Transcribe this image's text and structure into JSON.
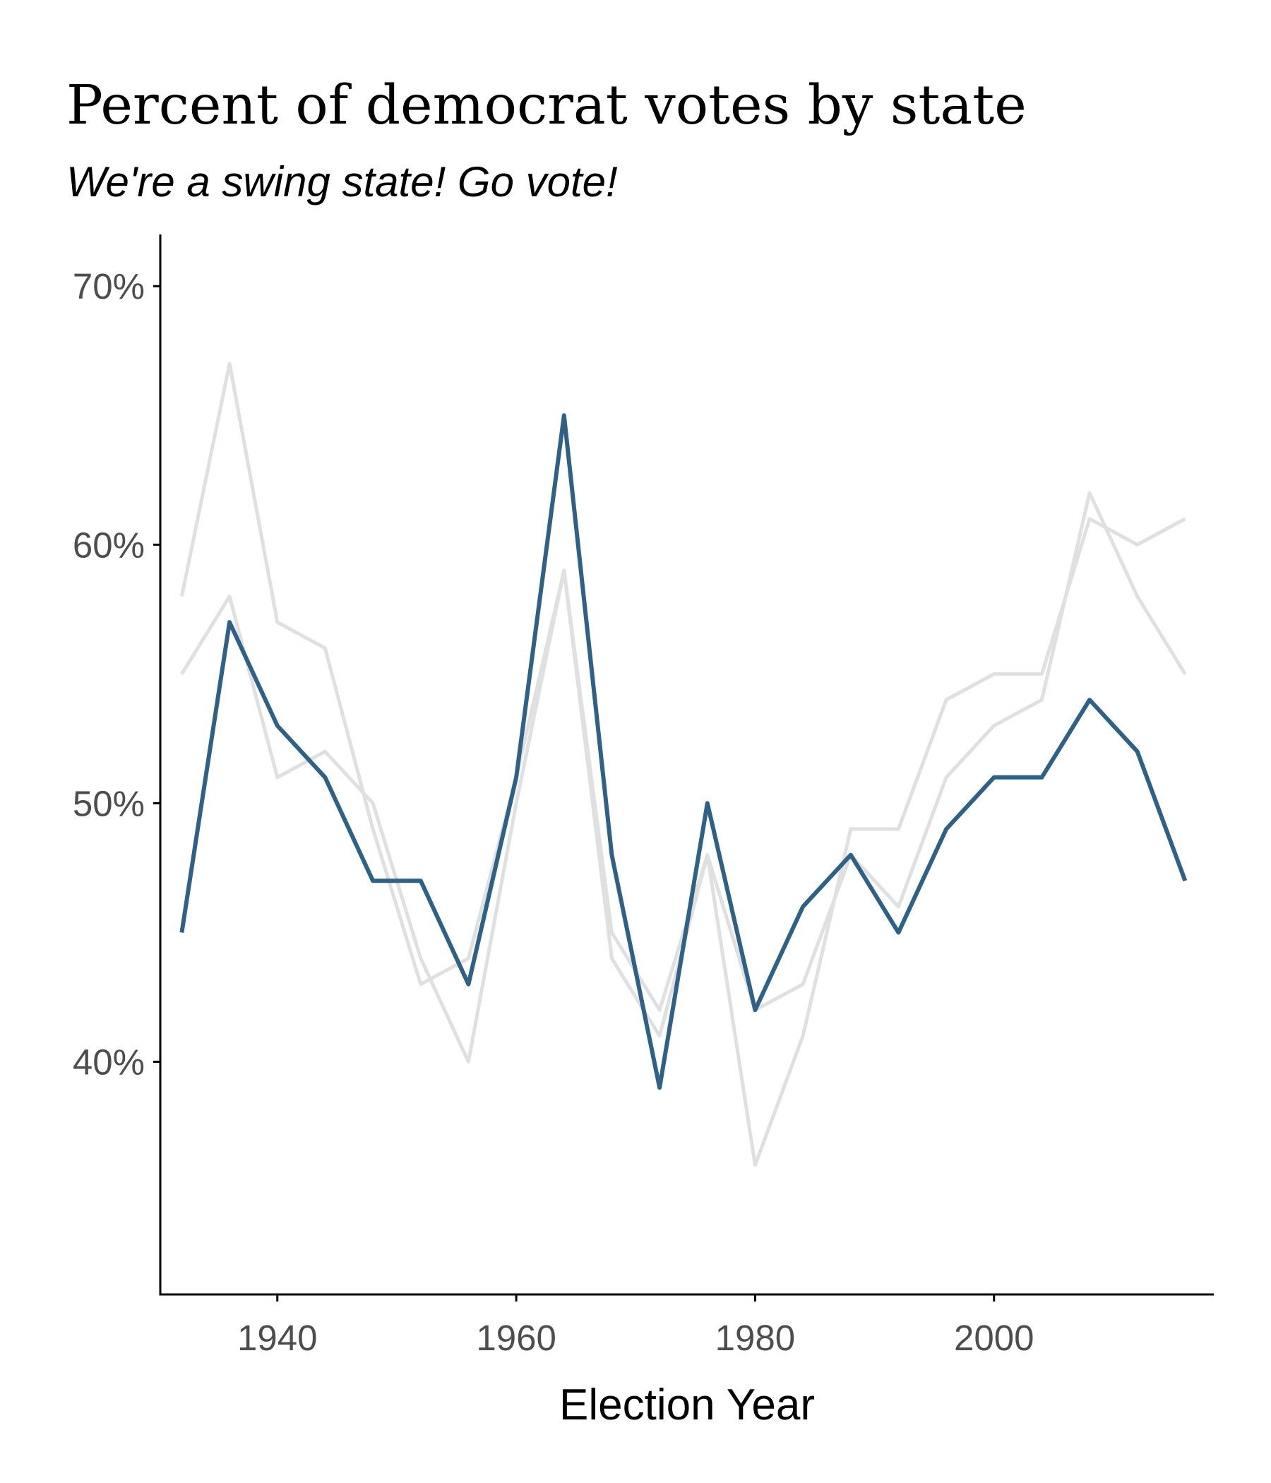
{
  "chart_data": {
    "type": "line",
    "title": "Percent of democrat votes by state",
    "subtitle": "We're a swing state! Go vote!",
    "xlabel": "Election Year",
    "ylabel": "",
    "x": [
      1932,
      1936,
      1940,
      1944,
      1948,
      1952,
      1956,
      1960,
      1964,
      1968,
      1972,
      1976,
      1980,
      1984,
      1988,
      1992,
      1996,
      2000,
      2004,
      2008,
      2012,
      2016
    ],
    "xlim": [
      1930.2,
      2018.4
    ],
    "ylim": [
      0.31,
      0.72
    ],
    "x_ticks": [
      1940,
      1960,
      1980,
      2000
    ],
    "x_tick_labels": [
      "1940",
      "1960",
      "1980",
      "2000"
    ],
    "y_ticks": [
      0.4,
      0.5,
      0.6,
      0.7
    ],
    "y_tick_labels": [
      "40%",
      "50%",
      "60%",
      "70%"
    ],
    "legend": "none",
    "grid": false,
    "series": [
      {
        "color": "#e0e0e0",
        "highlighted": false,
        "values": [
          0.58,
          0.67,
          0.57,
          0.56,
          0.49,
          0.43,
          0.44,
          0.51,
          0.59,
          0.44,
          0.41,
          0.48,
          0.36,
          0.41,
          0.49,
          0.49,
          0.54,
          0.55,
          0.55,
          0.61,
          0.6,
          0.61
        ]
      },
      {
        "color": "#e0e0e0",
        "highlighted": false,
        "values": [
          0.55,
          0.58,
          0.51,
          0.52,
          0.5,
          0.44,
          0.4,
          0.5,
          0.59,
          0.45,
          0.42,
          0.48,
          0.42,
          0.43,
          0.48,
          0.46,
          0.51,
          0.53,
          0.54,
          0.62,
          0.58,
          0.55
        ]
      },
      {
        "color": "#2e6187",
        "highlighted": true,
        "values": [
          0.45,
          0.57,
          0.53,
          0.51,
          0.47,
          0.47,
          0.43,
          0.51,
          0.65,
          0.48,
          0.39,
          0.5,
          0.42,
          0.46,
          0.48,
          0.45,
          0.49,
          0.51,
          0.51,
          0.54,
          0.52,
          0.47
        ]
      }
    ]
  }
}
